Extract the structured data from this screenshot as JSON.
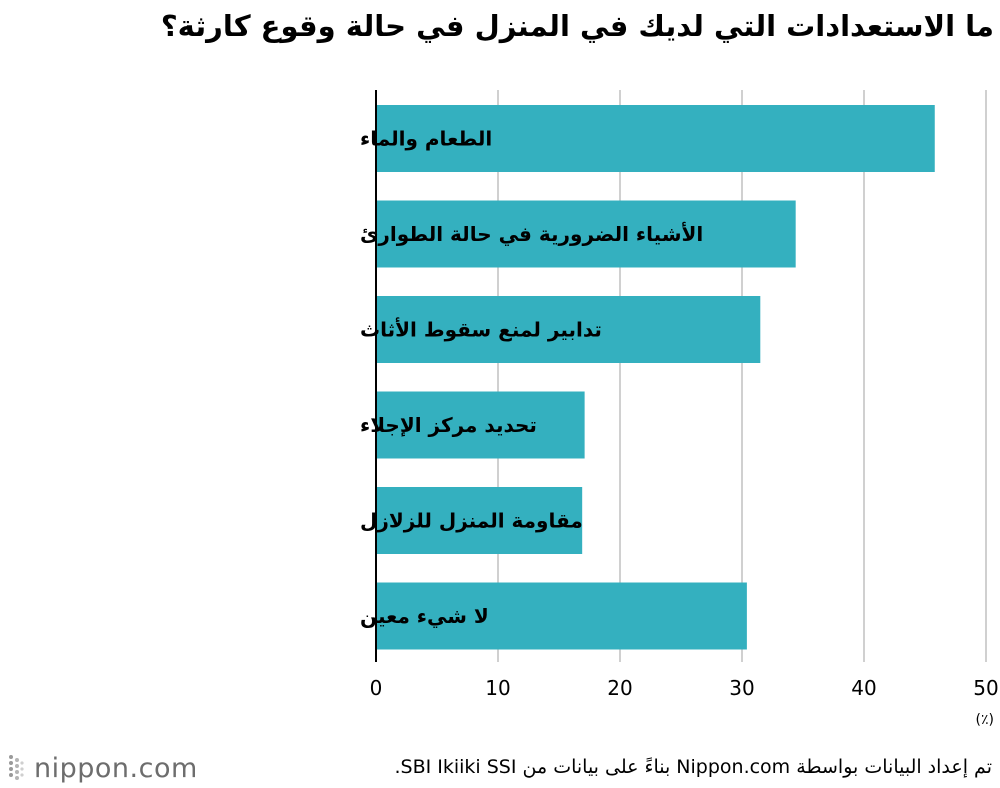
{
  "title": "ما الاستعدادات التي لديك في المنزل في حالة وقوع كارثة؟",
  "chart_data": {
    "type": "bar",
    "orientation": "horizontal",
    "categories": [
      "الطعام والماء",
      "الأشياء الضرورية في حالة الطوارئ",
      "تدابير لمنع سقوط الأثاث",
      "تحديد مركز الإجلاء",
      "مقاومة المنزل للزلازل",
      "لا شيء معين"
    ],
    "values": [
      45.8,
      34.4,
      31.5,
      17.1,
      16.9,
      30.4
    ],
    "x_ticks": [
      "0",
      "10",
      "20",
      "30",
      "40",
      "50"
    ],
    "xlim": [
      0,
      50
    ],
    "unit_label": "(٪)",
    "grid": true,
    "bar_color": "#34b0bf",
    "grid_color": "#d0d0d0"
  },
  "footer": {
    "logo_text": "nippon.com",
    "source": "تم إعداد البيانات بواسطة Nippon.com بناءً على بيانات من SBI Ikiiki SSI."
  }
}
